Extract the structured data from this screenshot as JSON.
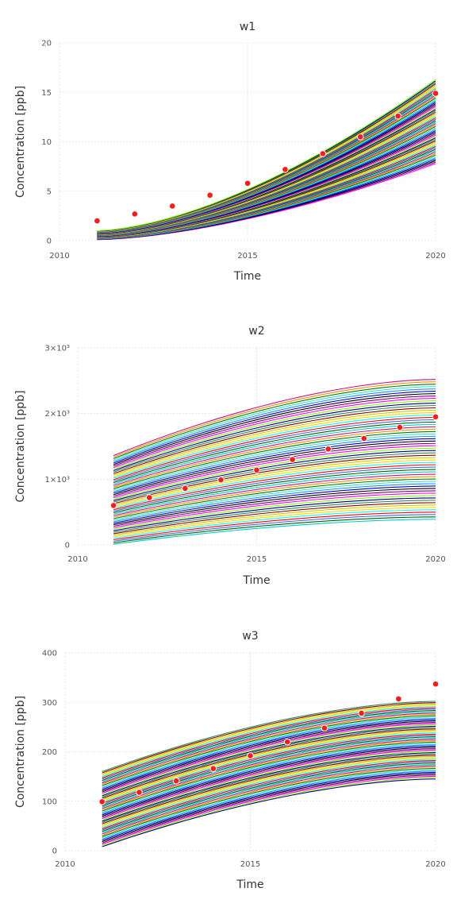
{
  "chart_data": [
    {
      "type": "line",
      "title": "w1",
      "xlabel": "Time",
      "ylabel": "Concentration [ppb]",
      "xlim": [
        2010,
        2020
      ],
      "ylim": [
        0,
        20
      ],
      "x_ticks": [
        2010,
        2015,
        2020
      ],
      "x_tick_labels": [
        "2010",
        "2015",
        "2020"
      ],
      "y_ticks": [
        0,
        5,
        10,
        15,
        20
      ],
      "y_tick_labels": [
        "0",
        "5",
        "10",
        "15",
        "20"
      ],
      "grid": true,
      "legend": "none",
      "ensemble": {
        "count": 60,
        "x_start": 2011,
        "x_end": 2020,
        "y_start": [
          0.1,
          1.0
        ],
        "y_end": [
          7.8,
          16.3
        ],
        "shape": "accelerating"
      },
      "observed": {
        "x": [
          2011,
          2012,
          2013,
          2014,
          2015,
          2016,
          2017,
          2018,
          2019,
          2020
        ],
        "y": [
          2.0,
          2.7,
          3.5,
          4.6,
          5.8,
          7.2,
          8.8,
          10.5,
          12.6,
          14.9
        ]
      }
    },
    {
      "type": "line",
      "title": "w2",
      "xlabel": "Time",
      "ylabel": "Concentration [ppb]",
      "xlim": [
        2010,
        2020
      ],
      "ylim": [
        0,
        3000
      ],
      "x_ticks": [
        2010,
        2015,
        2020
      ],
      "x_tick_labels": [
        "2010",
        "2015",
        "2020"
      ],
      "y_ticks": [
        0,
        1000,
        2000,
        3000
      ],
      "y_tick_labels": [
        "0",
        "1×10³",
        "2×10³",
        "3×10³"
      ],
      "grid": true,
      "legend": "none",
      "ensemble": {
        "count": 60,
        "x_start": 2011,
        "x_end": 2020,
        "y_start": [
          10,
          1360
        ],
        "y_end": [
          390,
          2520
        ],
        "shape": "saturating"
      },
      "observed": {
        "x": [
          2011,
          2012,
          2013,
          2014,
          2015,
          2016,
          2017,
          2018,
          2019,
          2020
        ],
        "y": [
          600,
          720,
          860,
          990,
          1140,
          1300,
          1460,
          1620,
          1790,
          1950
        ]
      }
    },
    {
      "type": "line",
      "title": "w3",
      "xlabel": "Time",
      "ylabel": "Concentration [ppb]",
      "xlim": [
        2010,
        2020
      ],
      "ylim": [
        0,
        400
      ],
      "x_ticks": [
        2010,
        2015,
        2020
      ],
      "x_tick_labels": [
        "2010",
        "2015",
        "2020"
      ],
      "y_ticks": [
        0,
        100,
        200,
        300,
        400
      ],
      "y_tick_labels": [
        "0",
        "100",
        "200",
        "300",
        "400"
      ],
      "grid": true,
      "legend": "none",
      "ensemble": {
        "count": 60,
        "x_start": 2011,
        "x_end": 2020,
        "y_start": [
          8,
          160
        ],
        "y_end": [
          145,
          302
        ],
        "shape": "saturating"
      },
      "observed": {
        "x": [
          2011,
          2012,
          2013,
          2014,
          2015,
          2016,
          2017,
          2018,
          2019,
          2020
        ],
        "y": [
          99,
          118,
          141,
          166,
          192,
          220,
          248,
          278,
          307,
          337
        ]
      }
    }
  ],
  "colors": {
    "observed": "#ff1a1a",
    "ensemble_palette": [
      "#ff00ff",
      "#0000cc",
      "#008000",
      "#00cccc",
      "#ff0000",
      "#cccc00",
      "#000080",
      "#800080",
      "#1e90ff",
      "#ff8c00",
      "#006400",
      "#00ffff",
      "#8b0000",
      "#7fff00",
      "#000000",
      "#40e0d0",
      "#c71585",
      "#4169e1",
      "#ffd700",
      "#2e8b57"
    ]
  }
}
